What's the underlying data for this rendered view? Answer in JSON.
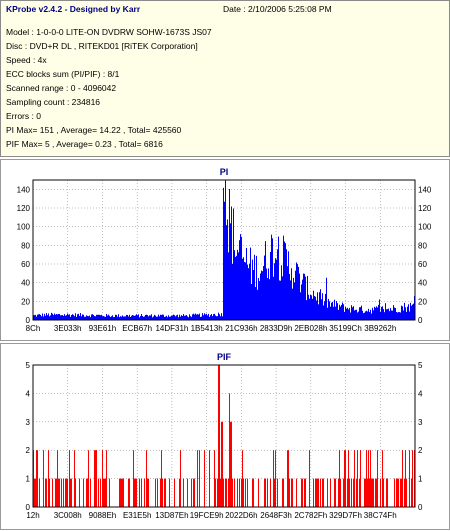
{
  "header": {
    "app_title": "KProbe v2.4.2 - Designed by Karr",
    "date_line": "Date : 2/10/2006 5:25:08 PM"
  },
  "info_lines": [
    "Model : 1-0-0-0 LITE-ON DVDRW SOHW-1673S JS07",
    "Disc : DVD+R DL , RITEKD01 [RiTEK Corporation]",
    "Speed : 4x",
    "ECC blocks sum (PI/PIF) : 8/1",
    "Scanned range : 0 - 4096042",
    "Sampling count : 234816",
    "Errors : 0",
    "PI Max= 151 , Average= 14.22 , Total= 425560",
    "PIF Max= 5 , Average= 0.23 , Total= 6816"
  ],
  "chart_data": [
    {
      "type": "bar",
      "title": "PI",
      "series_color": "#0000ff",
      "ylim": [
        0,
        150
      ],
      "y_ticks": [
        0,
        20,
        40,
        60,
        80,
        100,
        120,
        140
      ],
      "x_tick_labels": [
        "8Ch",
        "3E033h",
        "93E61h",
        "ECB67h",
        "14DF31h",
        "1B5413h",
        "21C936h",
        "2833D9h",
        "2EB028h",
        "35199Ch",
        "3B9262h"
      ],
      "grid": true,
      "profile": [
        [
          0.0,
          5
        ],
        [
          0.03,
          6
        ],
        [
          0.1,
          6
        ],
        [
          0.2,
          5
        ],
        [
          0.3,
          5
        ],
        [
          0.4,
          5
        ],
        [
          0.46,
          6
        ],
        [
          0.495,
          7
        ],
        [
          0.5,
          140
        ],
        [
          0.51,
          120
        ],
        [
          0.53,
          85
        ],
        [
          0.55,
          70
        ],
        [
          0.57,
          60
        ],
        [
          0.59,
          58
        ],
        [
          0.6,
          62
        ],
        [
          0.61,
          70
        ],
        [
          0.62,
          78
        ],
        [
          0.63,
          80
        ],
        [
          0.64,
          77
        ],
        [
          0.66,
          68
        ],
        [
          0.68,
          58
        ],
        [
          0.7,
          45
        ],
        [
          0.72,
          35
        ],
        [
          0.75,
          25
        ],
        [
          0.78,
          18
        ],
        [
          0.82,
          14
        ],
        [
          0.86,
          12
        ],
        [
          0.9,
          12
        ],
        [
          0.94,
          13
        ],
        [
          0.97,
          15
        ],
        [
          1.0,
          16
        ]
      ]
    },
    {
      "type": "bar",
      "title": "PIF",
      "series_color": "#ff0000",
      "ylim": [
        0,
        5
      ],
      "y_ticks": [
        0,
        1,
        2,
        3,
        4,
        5
      ],
      "x_tick_labels": [
        "12h",
        "3C008h",
        "9088Eh",
        "E31E5h",
        "13D87Eh",
        "19FCE9h",
        "2022D6h",
        "2648F3h",
        "2C782Fh",
        "329D7Fh",
        "38C74Fh"
      ],
      "grid": true
    }
  ]
}
